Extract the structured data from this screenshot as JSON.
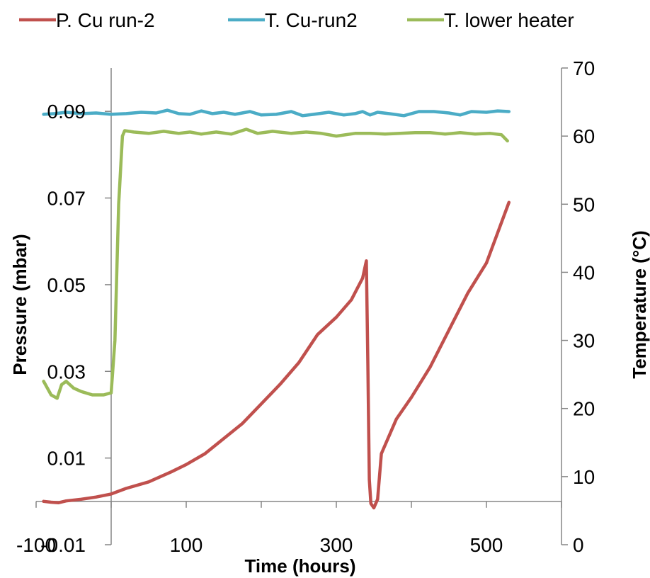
{
  "chart_data": {
    "type": "line",
    "title": "",
    "xlabel": "Time (hours)",
    "ylabel_left": "Pressure (mbar)",
    "ylabel_right": "Temperature (°C)",
    "xlim": [
      -100,
      600
    ],
    "ylim_left": [
      -0.01,
      0.1
    ],
    "ylim_right": [
      0,
      70
    ],
    "x_ticks": [
      -100,
      100,
      300,
      500
    ],
    "x_tick_labels": [
      "-100",
      "100",
      "300",
      "500"
    ],
    "y_left_ticks": [
      -0.01,
      0.01,
      0.03,
      0.05,
      0.07,
      0.09
    ],
    "y_left_tick_labels": [
      "-0.01",
      "0.01",
      "0.03",
      "0.05",
      "0.07",
      "0.09"
    ],
    "y_right_ticks": [
      0,
      10,
      20,
      30,
      40,
      50,
      60,
      70
    ],
    "y_right_tick_labels": [
      "0",
      "10",
      "20",
      "30",
      "40",
      "50",
      "60",
      "70"
    ],
    "grid": false,
    "legend_position": "top",
    "series": [
      {
        "name": "P. Cu run-2",
        "axis": "left",
        "color": "#C0504D",
        "points": [
          [
            -90,
            0.0
          ],
          [
            -80,
            -0.0002
          ],
          [
            -70,
            -0.0003
          ],
          [
            -60,
            0.0001
          ],
          [
            -40,
            0.0005
          ],
          [
            -20,
            0.001
          ],
          [
            0,
            0.0017
          ],
          [
            20,
            0.003
          ],
          [
            50,
            0.0045
          ],
          [
            80,
            0.0068
          ],
          [
            100,
            0.0085
          ],
          [
            125,
            0.011
          ],
          [
            150,
            0.0145
          ],
          [
            175,
            0.018
          ],
          [
            200,
            0.0225
          ],
          [
            225,
            0.027
          ],
          [
            250,
            0.032
          ],
          [
            275,
            0.0385
          ],
          [
            300,
            0.0425
          ],
          [
            320,
            0.0465
          ],
          [
            335,
            0.0515
          ],
          [
            340,
            0.0555
          ],
          [
            342,
            0.032
          ],
          [
            344,
            0.005
          ],
          [
            346,
            -0.0005
          ],
          [
            350,
            -0.0015
          ],
          [
            355,
            0.0005
          ],
          [
            360,
            0.011
          ],
          [
            380,
            0.019
          ],
          [
            400,
            0.024
          ],
          [
            425,
            0.031
          ],
          [
            450,
            0.0395
          ],
          [
            475,
            0.048
          ],
          [
            500,
            0.055
          ],
          [
            515,
            0.062
          ],
          [
            530,
            0.069
          ]
        ]
      },
      {
        "name": "T. Cu-run2",
        "axis": "right",
        "color": "#4BACC6",
        "points": [
          [
            -90,
            63.2
          ],
          [
            -75,
            63.3
          ],
          [
            -60,
            63.5
          ],
          [
            -40,
            63.3
          ],
          [
            -20,
            63.4
          ],
          [
            0,
            63.2
          ],
          [
            20,
            63.3
          ],
          [
            40,
            63.5
          ],
          [
            60,
            63.4
          ],
          [
            75,
            63.8
          ],
          [
            90,
            63.3
          ],
          [
            105,
            63.2
          ],
          [
            120,
            63.7
          ],
          [
            135,
            63.3
          ],
          [
            150,
            63.5
          ],
          [
            165,
            63.2
          ],
          [
            185,
            63.6
          ],
          [
            200,
            63.1
          ],
          [
            220,
            63.2
          ],
          [
            240,
            63.6
          ],
          [
            255,
            63.0
          ],
          [
            270,
            63.2
          ],
          [
            290,
            63.5
          ],
          [
            310,
            63.1
          ],
          [
            325,
            63.3
          ],
          [
            335,
            63.6
          ],
          [
            345,
            63.1
          ],
          [
            355,
            63.5
          ],
          [
            370,
            63.3
          ],
          [
            390,
            63.0
          ],
          [
            410,
            63.6
          ],
          [
            430,
            63.6
          ],
          [
            450,
            63.4
          ],
          [
            465,
            63.1
          ],
          [
            480,
            63.6
          ],
          [
            500,
            63.5
          ],
          [
            515,
            63.7
          ],
          [
            530,
            63.6
          ]
        ]
      },
      {
        "name": "T. lower heater",
        "axis": "right",
        "color": "#9BBB59",
        "points": [
          [
            -90,
            24.0
          ],
          [
            -80,
            22.0
          ],
          [
            -72,
            21.5
          ],
          [
            -66,
            23.5
          ],
          [
            -60,
            24.0
          ],
          [
            -50,
            23.0
          ],
          [
            -40,
            22.5
          ],
          [
            -25,
            22.0
          ],
          [
            -10,
            22.0
          ],
          [
            0,
            22.3
          ],
          [
            5,
            30.0
          ],
          [
            10,
            50.0
          ],
          [
            15,
            60.0
          ],
          [
            18,
            60.8
          ],
          [
            30,
            60.6
          ],
          [
            50,
            60.4
          ],
          [
            70,
            60.7
          ],
          [
            90,
            60.4
          ],
          [
            105,
            60.6
          ],
          [
            120,
            60.3
          ],
          [
            140,
            60.6
          ],
          [
            160,
            60.3
          ],
          [
            180,
            61.0
          ],
          [
            195,
            60.4
          ],
          [
            215,
            60.7
          ],
          [
            240,
            60.4
          ],
          [
            260,
            60.6
          ],
          [
            280,
            60.4
          ],
          [
            300,
            60.0
          ],
          [
            325,
            60.4
          ],
          [
            345,
            60.4
          ],
          [
            365,
            60.3
          ],
          [
            385,
            60.4
          ],
          [
            405,
            60.5
          ],
          [
            425,
            60.5
          ],
          [
            445,
            60.3
          ],
          [
            465,
            60.5
          ],
          [
            485,
            60.3
          ],
          [
            505,
            60.4
          ],
          [
            520,
            60.2
          ],
          [
            528,
            59.3
          ]
        ]
      }
    ]
  }
}
